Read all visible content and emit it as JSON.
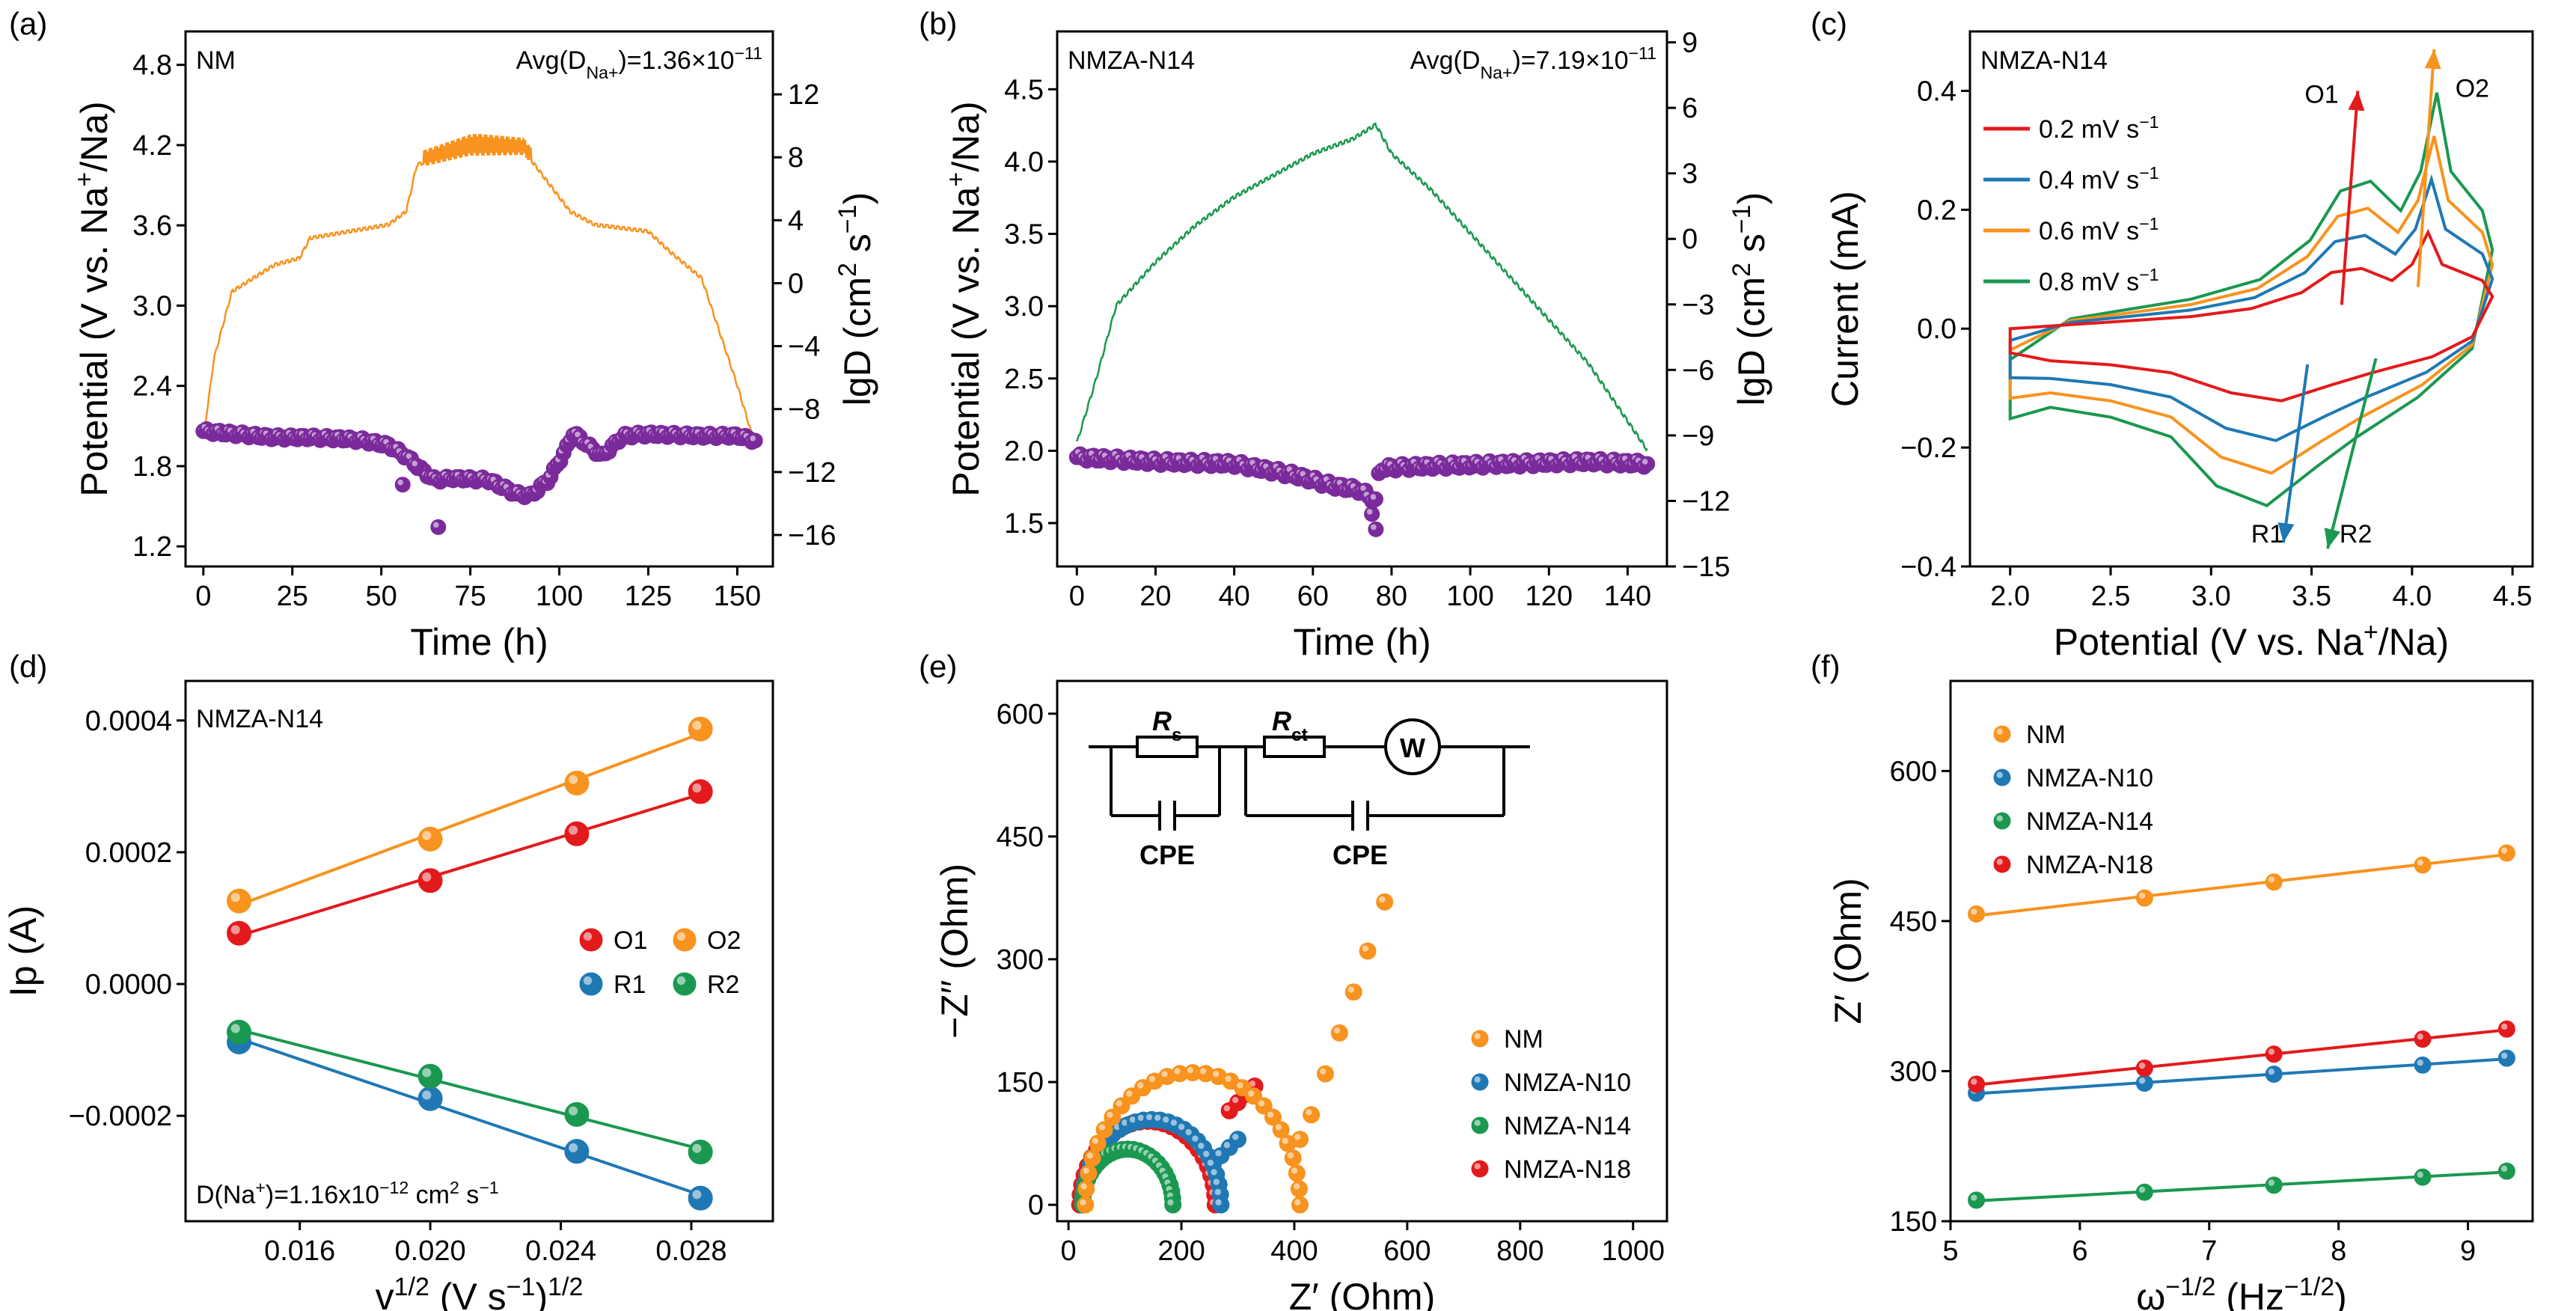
{
  "colors": {
    "orange": "#F7931E",
    "blue": "#1F78B4",
    "green": "#1A9850",
    "red": "#E31A1C",
    "purple": "#7B2A9B",
    "teal": "#2E9E5B"
  },
  "panel_labels": [
    "(a)",
    "(b)",
    "(c)",
    "(d)",
    "(e)",
    "(f)"
  ],
  "chart_data": [
    {
      "id": "a",
      "type": "line",
      "sample_label": "NM",
      "avg_label": "Avg(D",
      "avg_sub": "Na+",
      "avg_value": ")=1.36×10",
      "avg_exp": "−11",
      "xlabel": "Time (h)",
      "ylabel": "Potential (V vs. Na+/Na)",
      "y2label": "lgD (cm2 s−1)",
      "xlim": [
        -5,
        160
      ],
      "ylim": [
        1.05,
        5.05
      ],
      "y2lim": [
        -18,
        16
      ],
      "xticks": [
        0,
        25,
        50,
        75,
        100,
        125,
        150
      ],
      "yticks": [
        1.2,
        1.8,
        2.4,
        3.0,
        3.6,
        4.2,
        4.8
      ],
      "yticklabels": [
        "1.2",
        "1.8",
        "2.4",
        "3.0",
        "3.6",
        "4.2",
        "4.8"
      ],
      "y2ticks": [
        -16,
        -12,
        -8,
        -4,
        0,
        4,
        8,
        12
      ],
      "y2ticklabels": [
        "−16",
        "−12",
        "−8",
        "−4",
        "0",
        "4",
        "8",
        "12"
      ],
      "potential_profile": [
        [
          0,
          2.0
        ],
        [
          3,
          2.6
        ],
        [
          8,
          3.1
        ],
        [
          20,
          3.3
        ],
        [
          27,
          3.35
        ],
        [
          30,
          3.5
        ],
        [
          52,
          3.6
        ],
        [
          57,
          3.7
        ],
        [
          60,
          4.05
        ],
        [
          75,
          4.15
        ],
        [
          90,
          4.15
        ],
        [
          93,
          4.05
        ],
        [
          103,
          3.7
        ],
        [
          110,
          3.6
        ],
        [
          125,
          3.55
        ],
        [
          131,
          3.4
        ],
        [
          140,
          3.2
        ],
        [
          150,
          2.4
        ],
        [
          155,
          1.95
        ]
      ],
      "potential_color": "orange",
      "lgD": [
        [
          0,
          -9.4
        ],
        [
          10,
          -9.6
        ],
        [
          20,
          -9.8
        ],
        [
          30,
          -9.8
        ],
        [
          40,
          -9.9
        ],
        [
          45,
          -10.0
        ],
        [
          52,
          -10.3
        ],
        [
          57,
          -11.0
        ],
        [
          62,
          -12.0
        ],
        [
          65,
          -12.5
        ],
        [
          70,
          -12.4
        ],
        [
          80,
          -12.5
        ],
        [
          88,
          -13.4
        ],
        [
          92,
          -13.5
        ],
        [
          97,
          -12.5
        ],
        [
          102,
          -10.5
        ],
        [
          104,
          -9.5
        ],
        [
          108,
          -10.3
        ],
        [
          112,
          -11.0
        ],
        [
          118,
          -9.7
        ],
        [
          125,
          -9.6
        ],
        [
          140,
          -9.7
        ],
        [
          150,
          -9.7
        ],
        [
          155,
          -10.0
        ]
      ],
      "lgD_outliers": [
        [
          56,
          -12.8
        ],
        [
          66,
          -15.5
        ],
        [
          60,
          -11.6
        ]
      ],
      "lgD_color": "purple"
    },
    {
      "id": "b",
      "type": "line",
      "sample_label": "NMZA-N14",
      "avg_label": "Avg(D",
      "avg_sub": "Na+",
      "avg_value": ")=7.19×10",
      "avg_exp": "−11",
      "xlabel": "Time (h)",
      "ylabel": "Potential (V vs. Na+/Na)",
      "y2label": "lgD (cm2 s−1)",
      "xlim": [
        -5,
        150
      ],
      "ylim": [
        1.2,
        4.9
      ],
      "y2lim": [
        -15,
        9.5
      ],
      "xticks": [
        0,
        20,
        40,
        60,
        80,
        100,
        120,
        140
      ],
      "yticks": [
        1.5,
        2.0,
        2.5,
        3.0,
        3.5,
        4.0,
        4.5
      ],
      "yticklabels": [
        "1.5",
        "2.0",
        "2.5",
        "3.0",
        "3.5",
        "4.0",
        "4.5"
      ],
      "y2ticks": [
        -15,
        -12,
        -9,
        -6,
        -3,
        0,
        3,
        6,
        9
      ],
      "y2ticklabels": [
        "−15",
        "−12",
        "−9",
        "−6",
        "−3",
        "0",
        "3",
        "6",
        "9"
      ],
      "potential_profile": [
        [
          0,
          2.05
        ],
        [
          5,
          2.5
        ],
        [
          10,
          3.0
        ],
        [
          20,
          3.3
        ],
        [
          30,
          3.55
        ],
        [
          40,
          3.75
        ],
        [
          50,
          3.9
        ],
        [
          60,
          4.05
        ],
        [
          70,
          4.15
        ],
        [
          76,
          4.25
        ],
        [
          80,
          4.05
        ],
        [
          90,
          3.8
        ],
        [
          100,
          3.5
        ],
        [
          110,
          3.2
        ],
        [
          120,
          2.9
        ],
        [
          130,
          2.6
        ],
        [
          140,
          2.2
        ],
        [
          145,
          2.0
        ]
      ],
      "potential_color": "green",
      "lgD": [
        [
          0,
          -10.0
        ],
        [
          20,
          -10.2
        ],
        [
          40,
          -10.3
        ],
        [
          55,
          -10.8
        ],
        [
          65,
          -11.3
        ],
        [
          72,
          -11.5
        ],
        [
          76,
          -12.0
        ],
        [
          77,
          -10.5
        ],
        [
          90,
          -10.4
        ],
        [
          110,
          -10.3
        ],
        [
          130,
          -10.2
        ],
        [
          145,
          -10.3
        ]
      ],
      "lgD_outliers": [
        [
          76,
          -13.3
        ],
        [
          75,
          -12.6
        ]
      ],
      "lgD_color": "purple"
    },
    {
      "id": "c",
      "type": "line",
      "sample_label": "NMZA-N14",
      "xlabel": "Potential (V vs. Na+/Na)",
      "ylabel": "Current (mA)",
      "xlim": [
        1.8,
        4.6
      ],
      "ylim": [
        -0.4,
        0.5
      ],
      "xticks": [
        2.0,
        2.5,
        3.0,
        3.5,
        4.0,
        4.5
      ],
      "xticklabels": [
        "2.0",
        "2.5",
        "3.0",
        "3.5",
        "4.0",
        "4.5"
      ],
      "yticks": [
        -0.4,
        -0.2,
        0.0,
        0.2,
        0.4
      ],
      "yticklabels": [
        "−0.4",
        "−0.2",
        "0.0",
        "0.2",
        "0.4"
      ],
      "series": [
        {
          "name": "0.2 mV s−1",
          "color": "red",
          "scale": 1.0
        },
        {
          "name": "0.4 mV s−1",
          "color": "blue",
          "scale": 1.55
        },
        {
          "name": "0.6 mV s−1",
          "color": "orange",
          "scale": 2.0
        },
        {
          "name": "0.8 mV s−1",
          "color": "green",
          "scale": 2.45
        }
      ],
      "annotations": [
        "O1",
        "O2",
        "R1",
        "R2"
      ]
    },
    {
      "id": "d",
      "type": "scatter",
      "sample_label": "NMZA-N14",
      "note": "D(Na+)=1.16x10−12 cm2 s−1",
      "xlabel": "v1/2 (V s−1)1/2",
      "ylabel": "Ip (A)",
      "xlim": [
        0.0125,
        0.0305
      ],
      "ylim": [
        -0.00036,
        0.00046
      ],
      "xticks": [
        0.016,
        0.02,
        0.024,
        0.028
      ],
      "xticklabels": [
        "0.016",
        "0.020",
        "0.024",
        "0.028"
      ],
      "yticks": [
        -0.0002,
        0.0,
        0.0002,
        0.0004
      ],
      "yticklabels": [
        "−0.0002",
        "0.0000",
        "0.0002",
        "0.0004"
      ],
      "x": [
        0.01414,
        0.02,
        0.02449,
        0.02828
      ],
      "series": [
        {
          "name": "O1",
          "color": "red",
          "values": [
            7.7e-05,
            0.000157,
            0.000228,
            0.000292
          ]
        },
        {
          "name": "O2",
          "color": "orange",
          "values": [
            0.000126,
            0.00022,
            0.000305,
            0.000387
          ]
        },
        {
          "name": "R1",
          "color": "blue",
          "values": [
            -8.8e-05,
            -0.000174,
            -0.000254,
            -0.000325
          ]
        },
        {
          "name": "R2",
          "color": "green",
          "values": [
            -7.3e-05,
            -0.00014,
            -0.000198,
            -0.000255
          ]
        }
      ]
    },
    {
      "id": "e",
      "type": "scatter",
      "xlabel": "Z′ (Ohm)",
      "ylabel": "−Z′′ (Ohm)",
      "xlim": [
        -20,
        1060
      ],
      "ylim": [
        -20,
        640
      ],
      "xticks": [
        0,
        200,
        400,
        600,
        800,
        1000
      ],
      "yticks": [
        0,
        150,
        300,
        450,
        600
      ],
      "circuit_labels": {
        "rs": "R",
        "rs_sub": "s",
        "rct": "R",
        "rct_sub": "ct",
        "w": "W",
        "cpe1": "CPE",
        "cpe2": "CPE"
      },
      "series": [
        {
          "name": "NM",
          "color": "orange",
          "rs": 30,
          "rct": 380,
          "tail": [
            [
              410,
              80
            ],
            [
              430,
              110
            ],
            [
              455,
              160
            ],
            [
              480,
              210
            ],
            [
              505,
              260
            ],
            [
              530,
              310
            ],
            [
              560,
              370
            ]
          ]
        },
        {
          "name": "NMZA-N10",
          "color": "blue",
          "rs": 25,
          "rct": 245,
          "tail": [
            [
              270,
              60
            ],
            [
              285,
              70
            ],
            [
              300,
              80
            ]
          ]
        },
        {
          "name": "NMZA-N14",
          "color": "green",
          "rs": 25,
          "rct": 160,
          "tail": []
        },
        {
          "name": "NMZA-N18",
          "color": "red",
          "rs": 20,
          "rct": 240,
          "tail": [
            [
              285,
              115
            ],
            [
              300,
              125
            ],
            [
              315,
              135
            ],
            [
              330,
              145
            ]
          ]
        }
      ]
    },
    {
      "id": "f",
      "type": "scatter",
      "xlabel": "ω−1/2 (Hz−1/2)",
      "ylabel": "Z′ (Ohm)",
      "xlim": [
        5.0,
        9.5
      ],
      "ylim": [
        150,
        690
      ],
      "xticks": [
        5,
        6,
        7,
        8,
        9
      ],
      "yticks": [
        150,
        300,
        450,
        600
      ],
      "x": [
        5.2,
        6.5,
        7.5,
        8.65,
        9.3
      ],
      "series": [
        {
          "name": "NM",
          "color": "orange",
          "values": [
            457,
            473,
            489,
            506,
            518
          ]
        },
        {
          "name": "NMZA-N10",
          "color": "blue",
          "values": [
            278,
            288,
            297,
            306,
            313
          ]
        },
        {
          "name": "NMZA-N14",
          "color": "green",
          "values": [
            171,
            179,
            186,
            194,
            200
          ]
        },
        {
          "name": "NMZA-N18",
          "color": "red",
          "values": [
            287,
            303,
            317,
            332,
            342
          ]
        }
      ]
    }
  ]
}
